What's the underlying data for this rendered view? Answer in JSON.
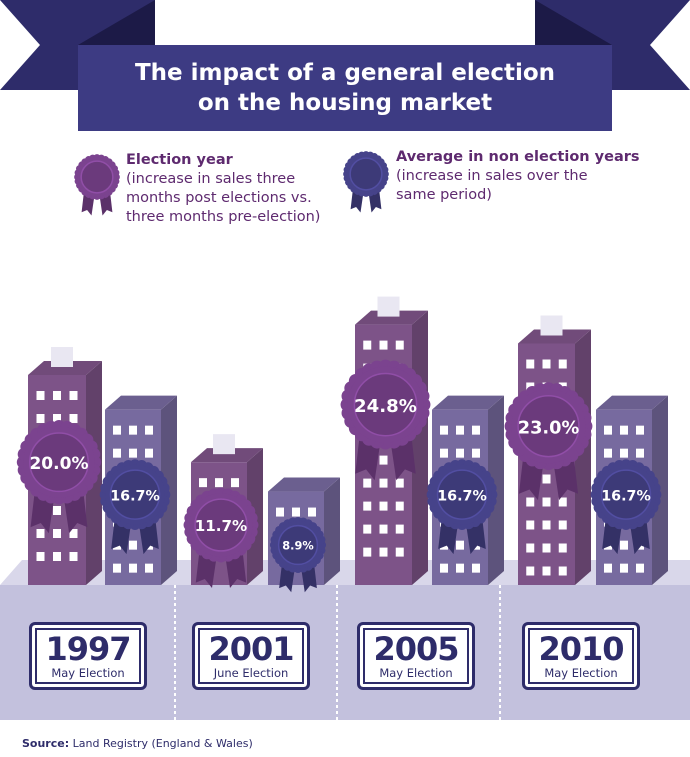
{
  "title_line1": "The impact of a general election",
  "title_line2": "on the housing market",
  "legend": {
    "election": {
      "title": "Election year",
      "desc1": "(increase in sales three",
      "desc2": "months post elections vs.",
      "desc3": "three months pre-election)",
      "color": "#6b3a7c"
    },
    "non_election": {
      "title": "Average in non election years",
      "desc1": "(increase in sales over the",
      "desc2": "same period)",
      "color": "#3d3a78"
    }
  },
  "source": {
    "label": "Source:",
    "text": "Land Registry (England & Wales)"
  },
  "colors": {
    "banner": "#2e2c6a",
    "election_building": "#7d5388",
    "non_election_building": "#776a9f",
    "ground": "#c3c1dd",
    "rosette_election": "#6b3a7c",
    "rosette_non_election": "#3d3a78"
  },
  "chart_data": {
    "type": "bar",
    "categories": [
      "1997",
      "2001",
      "2005",
      "2010"
    ],
    "category_sublabels": [
      "May Election",
      "June Election",
      "May Election",
      "May Election"
    ],
    "series": [
      {
        "name": "Election year",
        "values": [
          20.0,
          11.7,
          24.8,
          23.0
        ],
        "labels": [
          "20.0%",
          "11.7%",
          "24.8%",
          "23.0%"
        ]
      },
      {
        "name": "Average in non election years",
        "values": [
          16.7,
          8.9,
          16.7,
          16.7
        ],
        "labels": [
          "16.7%",
          "8.9%",
          "16.7%",
          "16.7%"
        ]
      }
    ],
    "ylim": [
      0,
      25
    ]
  }
}
